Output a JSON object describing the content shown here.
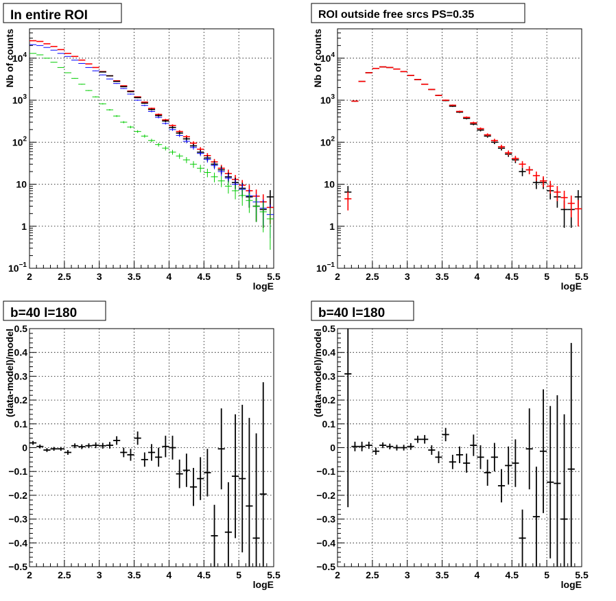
{
  "chart_data": [
    {
      "type": "scatter",
      "title": "In entire ROI",
      "xlabel": "logE",
      "ylabel": "Nb of counts",
      "xlim": [
        2,
        5.5
      ],
      "ylim": [
        0.1,
        50000
      ],
      "yscale": "log",
      "grid": true,
      "xticks": [
        "2",
        "2.5",
        "3",
        "3.5",
        "4",
        "4.5",
        "5",
        "5.5"
      ],
      "yticks": [
        {
          "v": 0.1,
          "base": "10",
          "exp": "−1"
        },
        {
          "v": 1,
          "base": "1",
          "exp": ""
        },
        {
          "v": 10,
          "base": "10",
          "exp": ""
        },
        {
          "v": 100,
          "base": "10",
          "exp": "2"
        },
        {
          "v": 1000,
          "base": "10",
          "exp": "3"
        },
        {
          "v": 10000,
          "base": "10",
          "exp": "4"
        }
      ],
      "series": [
        {
          "color": "#ff0000",
          "style": "errorbar",
          "x": [
            2.05,
            2.15,
            2.25,
            2.35,
            2.45,
            2.55,
            2.65,
            2.75,
            2.85,
            2.95,
            3.05,
            3.15,
            3.25,
            3.35,
            3.45,
            3.55,
            3.65,
            3.75,
            3.85,
            3.95,
            4.05,
            4.15,
            4.25,
            4.35,
            4.45,
            4.55,
            4.65,
            4.75,
            4.85,
            4.95,
            5.05,
            5.15,
            5.25,
            5.35,
            5.45
          ],
          "y": [
            26000,
            25000,
            22000,
            19000,
            16000,
            13000,
            11000,
            9000,
            7300,
            6000,
            4800,
            3800,
            2900,
            2200,
            1650,
            1200,
            900,
            640,
            460,
            340,
            250,
            180,
            135,
            95,
            68,
            48,
            34,
            24,
            18,
            13,
            9.5,
            7,
            5.2,
            3.8,
            2.8
          ]
        },
        {
          "color": "#000000",
          "style": "errorbar",
          "x": [
            3.05,
            3.15,
            3.25,
            3.35,
            3.45,
            3.55,
            3.65,
            3.75,
            3.85,
            3.95,
            4.05,
            4.15,
            4.25,
            4.35,
            4.45,
            4.55,
            4.65,
            4.75,
            4.85,
            4.95,
            5.05,
            5.15,
            5.25,
            5.35,
            5.45
          ],
          "y": [
            4700,
            3800,
            2800,
            2100,
            1600,
            1150,
            850,
            600,
            430,
            320,
            225,
            165,
            120,
            82,
            58,
            42,
            30,
            22,
            15,
            11,
            8,
            5,
            3,
            2.5,
            5
          ]
        },
        {
          "color": "#0000ff",
          "style": "errorbar",
          "x": [
            2.05,
            2.15,
            2.25,
            2.35,
            2.45,
            2.55,
            2.65,
            2.75,
            2.85,
            2.95,
            3.05,
            3.15,
            3.25,
            3.35,
            3.45,
            3.55,
            3.65,
            3.75,
            3.85,
            3.95,
            4.05,
            4.15,
            4.25,
            4.35,
            4.45,
            4.55,
            4.65,
            4.75,
            4.85,
            4.95,
            5.05,
            5.15,
            5.25,
            5.35,
            5.45
          ],
          "y": [
            21000,
            20000,
            18000,
            15500,
            13000,
            11000,
            9000,
            7500,
            6000,
            5000,
            4000,
            3200,
            2500,
            1900,
            1400,
            1000,
            750,
            540,
            390,
            280,
            200,
            145,
            105,
            75,
            54,
            39,
            28,
            20,
            14,
            10,
            7.5,
            5.3,
            3.8,
            2.7,
            1.9
          ]
        },
        {
          "color": "#00cc00",
          "style": "errorbar",
          "x": [
            2.05,
            2.15,
            2.25,
            2.35,
            2.45,
            2.55,
            2.65,
            2.75,
            2.85,
            2.95,
            3.05,
            3.15,
            3.25,
            3.35,
            3.45,
            3.55,
            3.65,
            3.75,
            3.85,
            3.95,
            4.05,
            4.15,
            4.25,
            4.35,
            4.45,
            4.55,
            4.65,
            4.75,
            4.85,
            4.95,
            5.05,
            5.15,
            5.25,
            5.35,
            5.45
          ],
          "y": [
            13000,
            12000,
            10000,
            8000,
            6000,
            4500,
            3300,
            2400,
            1700,
            1200,
            820,
            590,
            420,
            300,
            230,
            180,
            140,
            110,
            88,
            72,
            58,
            47,
            38,
            30,
            24,
            19,
            15,
            12,
            9,
            7,
            5.4,
            4.1,
            3,
            2.2,
            1.5
          ]
        }
      ]
    },
    {
      "type": "scatter",
      "title": "ROI outside free srcs PS=0.35",
      "xlabel": "logE",
      "ylabel": "Nb of counts",
      "xlim": [
        2,
        5.5
      ],
      "ylim": [
        0.1,
        50000
      ],
      "yscale": "log",
      "grid": true,
      "xticks": [
        "2",
        "2.5",
        "3",
        "3.5",
        "4",
        "4.5",
        "5",
        "5.5"
      ],
      "yticks": [
        {
          "v": 0.1,
          "base": "10",
          "exp": "−1"
        },
        {
          "v": 1,
          "base": "1",
          "exp": ""
        },
        {
          "v": 10,
          "base": "10",
          "exp": ""
        },
        {
          "v": 100,
          "base": "10",
          "exp": "2"
        },
        {
          "v": 1000,
          "base": "10",
          "exp": "3"
        },
        {
          "v": 10000,
          "base": "10",
          "exp": "4"
        }
      ],
      "series": [
        {
          "color": "#000000",
          "style": "errorbar",
          "x": [
            2.15,
            2.25,
            2.35,
            2.45,
            2.55,
            2.65,
            2.75,
            2.85,
            2.95,
            3.05,
            3.15,
            3.25,
            3.35,
            3.45,
            3.55,
            3.65,
            3.75,
            3.85,
            3.95,
            4.05,
            4.15,
            4.25,
            4.35,
            4.45,
            4.55,
            4.65,
            4.75,
            4.85,
            4.95,
            5.05,
            5.15,
            5.25,
            5.35,
            5.45
          ],
          "y": [
            6.5,
            950,
            2800,
            4500,
            5700,
            6200,
            6000,
            5500,
            4800,
            3900,
            3100,
            2400,
            1800,
            1300,
            980,
            720,
            520,
            370,
            270,
            195,
            140,
            100,
            72,
            52,
            38,
            20,
            22,
            11,
            11,
            7,
            5,
            2.5,
            2.5,
            5
          ]
        },
        {
          "color": "#ff0000",
          "style": "errorbar",
          "x": [
            2.15,
            2.25,
            2.35,
            2.45,
            2.55,
            2.65,
            2.75,
            2.85,
            2.95,
            3.05,
            3.15,
            3.25,
            3.35,
            3.45,
            3.55,
            3.65,
            3.75,
            3.85,
            3.95,
            4.05,
            4.15,
            4.25,
            4.35,
            4.45,
            4.55,
            4.65,
            4.75,
            4.85,
            4.95,
            5.05,
            5.15,
            5.25,
            5.35,
            5.45
          ],
          "y": [
            4.5,
            950,
            2800,
            4500,
            5700,
            6200,
            6000,
            5500,
            4800,
            3900,
            3100,
            2400,
            1800,
            1300,
            1000,
            760,
            540,
            390,
            290,
            210,
            150,
            110,
            78,
            56,
            41,
            30,
            22,
            16,
            12,
            9,
            6.5,
            4.8,
            3.5,
            2.6
          ]
        }
      ]
    },
    {
      "type": "scatter",
      "title": "b=40 l=180",
      "xlabel": "logE",
      "ylabel": "(data-model)/model",
      "xlim": [
        2,
        5.5
      ],
      "ylim": [
        -0.5,
        0.5
      ],
      "grid": true,
      "xticks": [
        "2",
        "2.5",
        "3",
        "3.5",
        "4",
        "4.5",
        "5",
        "5.5"
      ],
      "yticks": [
        "−0.5",
        "−0.4",
        "−0.3",
        "−0.2",
        "−0.1",
        "0",
        "0.1",
        "0.2",
        "0.3",
        "0.4",
        "0.5"
      ],
      "series": [
        {
          "color": "#000000",
          "style": "errorbar",
          "x": [
            2.05,
            2.15,
            2.25,
            2.35,
            2.45,
            2.55,
            2.65,
            2.75,
            2.85,
            2.95,
            3.05,
            3.15,
            3.25,
            3.35,
            3.45,
            3.55,
            3.65,
            3.75,
            3.85,
            3.95,
            4.05,
            4.15,
            4.25,
            4.35,
            4.45,
            4.55,
            4.65,
            4.75,
            4.85,
            4.95,
            5.05,
            5.15,
            5.25,
            5.35
          ],
          "y": [
            0.02,
            0.005,
            -0.01,
            -0.005,
            -0.005,
            -0.02,
            0.008,
            0.004,
            0.008,
            0.01,
            0.008,
            0.01,
            0.03,
            -0.02,
            -0.03,
            0.04,
            -0.05,
            -0.02,
            -0.04,
            0.005,
            0.0,
            -0.11,
            -0.095,
            -0.165,
            -0.13,
            -0.105,
            -0.37,
            -0.005,
            -0.355,
            -0.12,
            -0.13,
            -0.245,
            -0.38,
            -0.195
          ],
          "yerr": [
            0.008,
            0.008,
            0.008,
            0.008,
            0.008,
            0.01,
            0.01,
            0.01,
            0.01,
            0.012,
            0.012,
            0.014,
            0.018,
            0.02,
            0.025,
            0.028,
            0.03,
            0.035,
            0.04,
            0.045,
            0.05,
            0.06,
            0.07,
            0.08,
            0.09,
            0.1,
            0.13,
            0.17,
            0.21,
            0.26,
            0.31,
            0.37,
            0.44,
            0.47
          ]
        }
      ]
    },
    {
      "type": "scatter",
      "title": "b=40 l=180",
      "xlabel": "logE",
      "ylabel": "(data-model)/model",
      "xlim": [
        2,
        5.5
      ],
      "ylim": [
        -0.5,
        0.5
      ],
      "grid": true,
      "xticks": [
        "2",
        "2.5",
        "3",
        "3.5",
        "4",
        "4.5",
        "5",
        "5.5"
      ],
      "yticks": [
        "−0.5",
        "−0.4",
        "−0.3",
        "−0.2",
        "−0.1",
        "0",
        "0.1",
        "0.2",
        "0.3",
        "0.4",
        "0.5"
      ],
      "series": [
        {
          "color": "#000000",
          "style": "errorbar",
          "x": [
            2.15,
            2.25,
            2.35,
            2.45,
            2.55,
            2.65,
            2.75,
            2.85,
            2.95,
            3.05,
            3.15,
            3.25,
            3.35,
            3.45,
            3.55,
            3.65,
            3.75,
            3.85,
            3.95,
            4.05,
            4.15,
            4.25,
            4.35,
            4.45,
            4.55,
            4.65,
            4.75,
            4.85,
            4.95,
            5.05,
            5.15,
            5.25,
            5.35
          ],
          "y": [
            0.31,
            0.005,
            0.005,
            0.01,
            -0.015,
            0.01,
            0.005,
            0.0,
            0.0,
            0.005,
            0.035,
            0.035,
            -0.01,
            -0.04,
            0.055,
            -0.06,
            -0.03,
            -0.065,
            0.01,
            -0.04,
            -0.105,
            -0.04,
            -0.16,
            -0.075,
            -0.065,
            -0.38,
            -0.005,
            -0.29,
            -0.015,
            -0.145,
            -0.15,
            -0.3,
            -0.09
          ],
          "yerr": [
            0.56,
            0.02,
            0.02,
            0.015,
            0.015,
            0.012,
            0.012,
            0.012,
            0.012,
            0.014,
            0.015,
            0.018,
            0.02,
            0.025,
            0.028,
            0.03,
            0.035,
            0.04,
            0.045,
            0.05,
            0.055,
            0.06,
            0.07,
            0.08,
            0.1,
            0.12,
            0.17,
            0.21,
            0.26,
            0.32,
            0.37,
            0.44,
            0.53
          ]
        }
      ]
    }
  ]
}
